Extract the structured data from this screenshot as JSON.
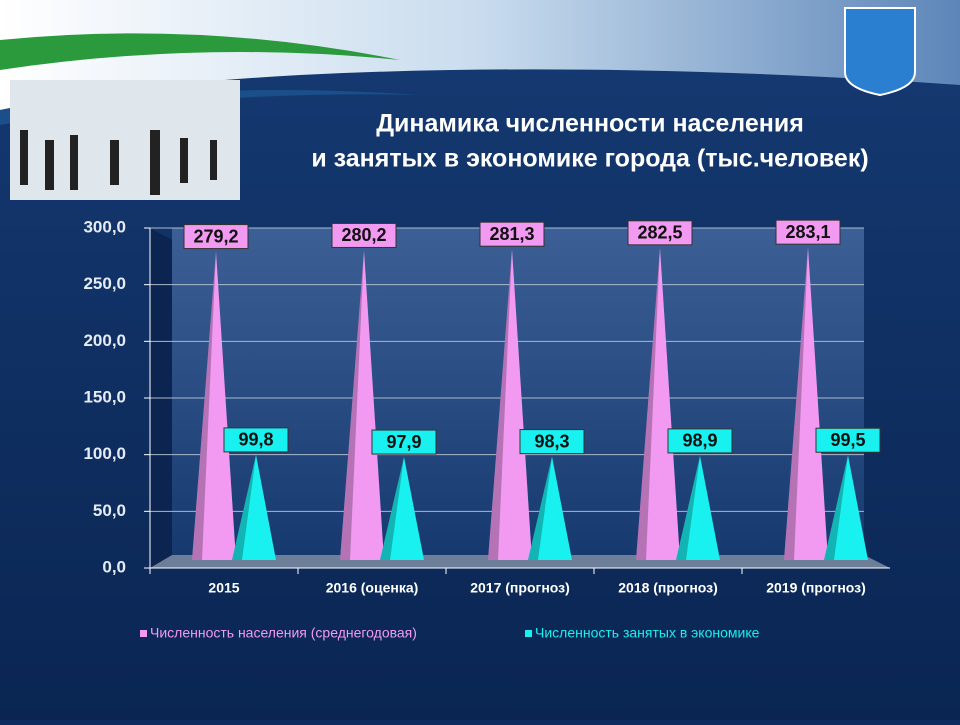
{
  "chart_data": {
    "type": "bar",
    "title": [
      "Динамика численности населения",
      "и занятых в экономике города (тыс.человек)"
    ],
    "categories": [
      "2015",
      "2016 (оценка)",
      "2017 (прогноз)",
      "2018 (прогноз)",
      "2019 (прогноз)"
    ],
    "series": [
      {
        "name": "Численность населения (среднегодовая)",
        "color": "#f29af2",
        "values": [
          279.2,
          280.2,
          281.3,
          282.5,
          283.1
        ],
        "value_labels": [
          "279,2",
          "280,2",
          "281,3",
          "282,5",
          "283,1"
        ]
      },
      {
        "name": "Численность занятых в экономике",
        "color": "#19f0f0",
        "values": [
          99.8,
          97.9,
          98.3,
          98.9,
          99.5
        ],
        "value_labels": [
          "99,8",
          "97,9",
          "98,3",
          "98,9",
          "99,5"
        ]
      }
    ],
    "ylim": [
      0,
      300
    ],
    "yticks": [
      {
        "value": 0,
        "label": "0,0"
      },
      {
        "value": 50,
        "label": "50,0"
      },
      {
        "value": 100,
        "label": "100,0"
      },
      {
        "value": 150,
        "label": "150,0"
      },
      {
        "value": 200,
        "label": "200,0"
      },
      {
        "value": 250,
        "label": "250,0"
      },
      {
        "value": 300,
        "label": "300,0"
      }
    ],
    "grid": true
  }
}
